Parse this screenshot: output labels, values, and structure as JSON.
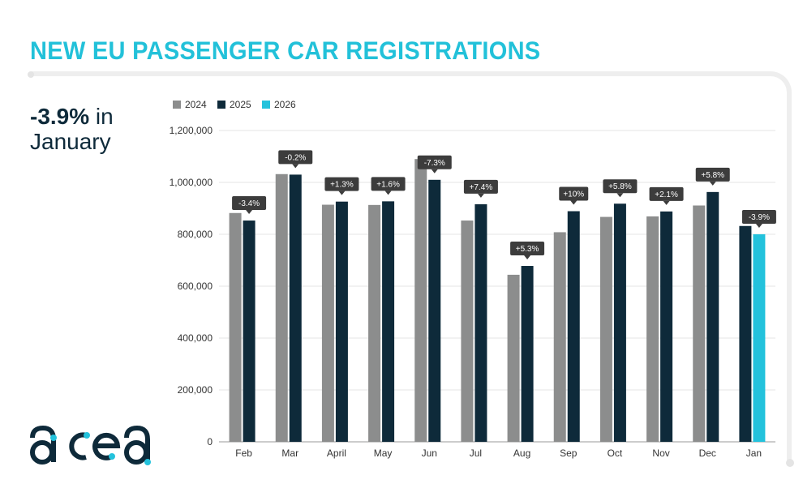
{
  "page": {
    "title": "NEW EU PASSENGER CAR REGISTRATIONS",
    "headline_value": "-3.9%",
    "headline_rest": " in",
    "headline_line2": "January",
    "logo_text": "acea"
  },
  "colors": {
    "title": "#22c1d9",
    "s2024": "#8c8d8d",
    "s2025": "#0e2a3a",
    "s2026": "#23c2dc",
    "callout": "#3c3c3c"
  },
  "chart_data": {
    "type": "bar",
    "title": "NEW EU PASSENGER CAR REGISTRATIONS",
    "xlabel": "",
    "ylabel": "",
    "ylim": [
      0,
      1200000
    ],
    "yticks": [
      0,
      200000,
      400000,
      600000,
      800000,
      1000000,
      1200000
    ],
    "ytick_labels": [
      "0",
      "200,000",
      "400,000",
      "600,000",
      "800,000",
      "1,000,000",
      "1,200,000"
    ],
    "grid": true,
    "legend": "top-left",
    "categories": [
      "Feb",
      "Mar",
      "April",
      "May",
      "Jun",
      "Jul",
      "Aug",
      "Sep",
      "Oct",
      "Nov",
      "Dec",
      "Jan"
    ],
    "series": [
      {
        "name": "2024",
        "color": "#8c8d8d",
        "values": [
          882000,
          1032000,
          914000,
          913000,
          1090000,
          853000,
          644000,
          808000,
          867000,
          869000,
          911000,
          null
        ]
      },
      {
        "name": "2025",
        "color": "#0e2a3a",
        "values": [
          853000,
          1030000,
          926000,
          927000,
          1010000,
          916000,
          678000,
          889000,
          918000,
          888000,
          963000,
          832000
        ]
      },
      {
        "name": "2026",
        "color": "#23c2dc",
        "values": [
          null,
          null,
          null,
          null,
          null,
          null,
          null,
          null,
          null,
          null,
          null,
          800000
        ]
      }
    ],
    "annotations": [
      "-3.4%",
      "-0.2%",
      "+1.3%",
      "+1.6%",
      "-7.3%",
      "+7.4%",
      "+5.3%",
      "+10%",
      "+5.8%",
      "+2.1%",
      "+5.8%",
      "-3.9%"
    ]
  }
}
